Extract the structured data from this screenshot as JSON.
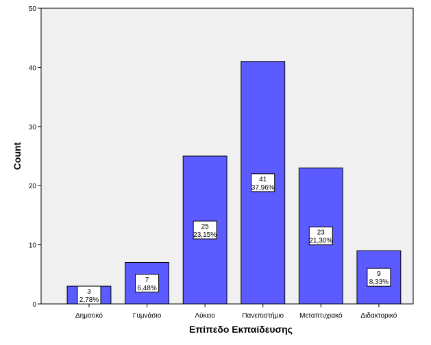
{
  "chart_data": {
    "type": "bar",
    "title": "",
    "xlabel": "Επίπεδο Εκπαίδευσης",
    "ylabel": "Count",
    "ylim": [
      0,
      50
    ],
    "yticks": [
      0,
      10,
      20,
      30,
      40,
      50
    ],
    "grid": false,
    "categories": [
      "Δημοτικό",
      "Γυμνάσιο",
      "Λύκειο",
      "Πανεπιστήμιο",
      "Μεταπτυχιακό",
      "Διδακτορικό"
    ],
    "values": [
      3,
      7,
      25,
      41,
      23,
      9
    ],
    "percent_labels": [
      "2,78%",
      "6,48%",
      "23,15%",
      "37,96%",
      "21,30%",
      "8,33%"
    ],
    "colors": {
      "bar": "#5b5bff",
      "plot_background": "#f0f0f0",
      "page_background": "#ffffff",
      "stroke": "#000000"
    }
  }
}
